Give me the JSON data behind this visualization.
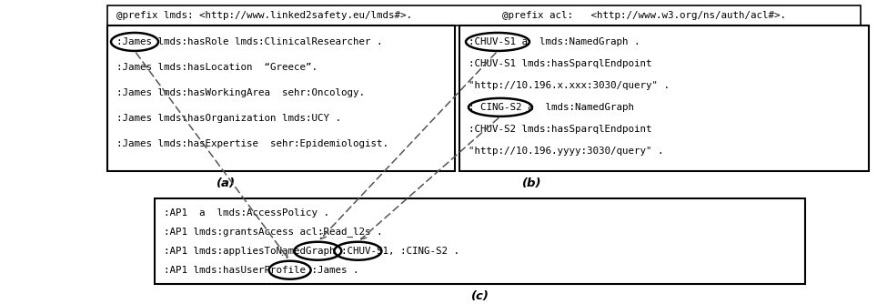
{
  "bg_color": "#ffffff",
  "header_text_left": "@prefix lmds: <http://www.linked2safety.eu/lmds#>.",
  "header_text_right": "@prefix acl:   <http://www.w3.org/ns/auth/acl#>.",
  "box_a_lines": [
    ":James lmds:hasRole lmds:ClinicalResearcher .",
    ":James lmds:hasLocation  “Greece”.",
    ":James lmds:hasWorkingArea  sehr:Oncology.",
    ":James lmds:hasOrganization lmds:UCY .",
    ":James lmds:hasExpertise  sehr:Epidemiologist."
  ],
  "box_b_lines": [
    ":CHUV-S1 a  lmds:NamedGraph .",
    ":CHUV-S1 lmds:hasSparqlEndpoint",
    "\"http://10.196.x.xxx:3030/query\" .",
    ": CING-S2 a  lmds:NamedGraph",
    ":CHUV-S2 lmds:hasSparqlEndpoint",
    "\"http://10.196.yyyy:3030/query\" ."
  ],
  "box_c_line1": ":AP1  a  lmds:AccessPolicy .",
  "box_c_line2": ":AP1 lmds:grantsAccess acl:Read_l2s .",
  "box_c_line3_pre": ":AP1 lmds:appliesToNamedGraph :",
  "box_c_line3_chuv": "CHUV-S1",
  "box_c_line3_mid": ",",
  "box_c_line3_cing": ":CING-S2",
  "box_c_line3_post": ".",
  "box_c_line4_pre": ":AP1 lmds:hasUserProfile :",
  "box_c_line4_james": "James",
  "box_c_line4_post": ".",
  "label_a": "(a)",
  "label_b": "(b)",
  "label_c": "(c)",
  "fontsize": 7.8,
  "mono_font": "DejaVu Sans Mono"
}
